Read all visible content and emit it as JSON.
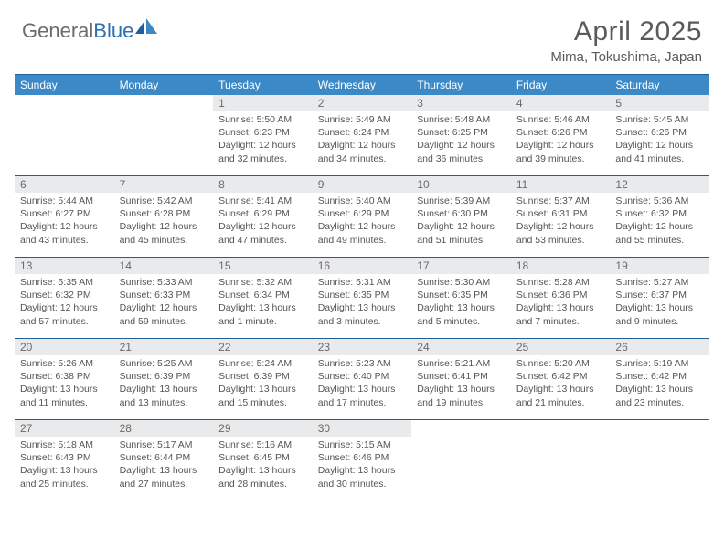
{
  "brand": {
    "part1": "General",
    "part2": "Blue"
  },
  "title": "April 2025",
  "location": "Mima, Tokushima, Japan",
  "colors": {
    "header_bg": "#3b89c7",
    "border": "#205e97",
    "daynum_bg": "#e9eaeb",
    "text": "#555555",
    "brand_gray": "#6b6b6b",
    "brand_blue": "#2b6fb5"
  },
  "days_of_week": [
    "Sunday",
    "Monday",
    "Tuesday",
    "Wednesday",
    "Thursday",
    "Friday",
    "Saturday"
  ],
  "weeks": [
    [
      {
        "n": "",
        "lines": []
      },
      {
        "n": "",
        "lines": []
      },
      {
        "n": "1",
        "lines": [
          "Sunrise: 5:50 AM",
          "Sunset: 6:23 PM",
          "Daylight: 12 hours",
          "and 32 minutes."
        ]
      },
      {
        "n": "2",
        "lines": [
          "Sunrise: 5:49 AM",
          "Sunset: 6:24 PM",
          "Daylight: 12 hours",
          "and 34 minutes."
        ]
      },
      {
        "n": "3",
        "lines": [
          "Sunrise: 5:48 AM",
          "Sunset: 6:25 PM",
          "Daylight: 12 hours",
          "and 36 minutes."
        ]
      },
      {
        "n": "4",
        "lines": [
          "Sunrise: 5:46 AM",
          "Sunset: 6:26 PM",
          "Daylight: 12 hours",
          "and 39 minutes."
        ]
      },
      {
        "n": "5",
        "lines": [
          "Sunrise: 5:45 AM",
          "Sunset: 6:26 PM",
          "Daylight: 12 hours",
          "and 41 minutes."
        ]
      }
    ],
    [
      {
        "n": "6",
        "lines": [
          "Sunrise: 5:44 AM",
          "Sunset: 6:27 PM",
          "Daylight: 12 hours",
          "and 43 minutes."
        ]
      },
      {
        "n": "7",
        "lines": [
          "Sunrise: 5:42 AM",
          "Sunset: 6:28 PM",
          "Daylight: 12 hours",
          "and 45 minutes."
        ]
      },
      {
        "n": "8",
        "lines": [
          "Sunrise: 5:41 AM",
          "Sunset: 6:29 PM",
          "Daylight: 12 hours",
          "and 47 minutes."
        ]
      },
      {
        "n": "9",
        "lines": [
          "Sunrise: 5:40 AM",
          "Sunset: 6:29 PM",
          "Daylight: 12 hours",
          "and 49 minutes."
        ]
      },
      {
        "n": "10",
        "lines": [
          "Sunrise: 5:39 AM",
          "Sunset: 6:30 PM",
          "Daylight: 12 hours",
          "and 51 minutes."
        ]
      },
      {
        "n": "11",
        "lines": [
          "Sunrise: 5:37 AM",
          "Sunset: 6:31 PM",
          "Daylight: 12 hours",
          "and 53 minutes."
        ]
      },
      {
        "n": "12",
        "lines": [
          "Sunrise: 5:36 AM",
          "Sunset: 6:32 PM",
          "Daylight: 12 hours",
          "and 55 minutes."
        ]
      }
    ],
    [
      {
        "n": "13",
        "lines": [
          "Sunrise: 5:35 AM",
          "Sunset: 6:32 PM",
          "Daylight: 12 hours",
          "and 57 minutes."
        ]
      },
      {
        "n": "14",
        "lines": [
          "Sunrise: 5:33 AM",
          "Sunset: 6:33 PM",
          "Daylight: 12 hours",
          "and 59 minutes."
        ]
      },
      {
        "n": "15",
        "lines": [
          "Sunrise: 5:32 AM",
          "Sunset: 6:34 PM",
          "Daylight: 13 hours",
          "and 1 minute."
        ]
      },
      {
        "n": "16",
        "lines": [
          "Sunrise: 5:31 AM",
          "Sunset: 6:35 PM",
          "Daylight: 13 hours",
          "and 3 minutes."
        ]
      },
      {
        "n": "17",
        "lines": [
          "Sunrise: 5:30 AM",
          "Sunset: 6:35 PM",
          "Daylight: 13 hours",
          "and 5 minutes."
        ]
      },
      {
        "n": "18",
        "lines": [
          "Sunrise: 5:28 AM",
          "Sunset: 6:36 PM",
          "Daylight: 13 hours",
          "and 7 minutes."
        ]
      },
      {
        "n": "19",
        "lines": [
          "Sunrise: 5:27 AM",
          "Sunset: 6:37 PM",
          "Daylight: 13 hours",
          "and 9 minutes."
        ]
      }
    ],
    [
      {
        "n": "20",
        "lines": [
          "Sunrise: 5:26 AM",
          "Sunset: 6:38 PM",
          "Daylight: 13 hours",
          "and 11 minutes."
        ]
      },
      {
        "n": "21",
        "lines": [
          "Sunrise: 5:25 AM",
          "Sunset: 6:39 PM",
          "Daylight: 13 hours",
          "and 13 minutes."
        ]
      },
      {
        "n": "22",
        "lines": [
          "Sunrise: 5:24 AM",
          "Sunset: 6:39 PM",
          "Daylight: 13 hours",
          "and 15 minutes."
        ]
      },
      {
        "n": "23",
        "lines": [
          "Sunrise: 5:23 AM",
          "Sunset: 6:40 PM",
          "Daylight: 13 hours",
          "and 17 minutes."
        ]
      },
      {
        "n": "24",
        "lines": [
          "Sunrise: 5:21 AM",
          "Sunset: 6:41 PM",
          "Daylight: 13 hours",
          "and 19 minutes."
        ]
      },
      {
        "n": "25",
        "lines": [
          "Sunrise: 5:20 AM",
          "Sunset: 6:42 PM",
          "Daylight: 13 hours",
          "and 21 minutes."
        ]
      },
      {
        "n": "26",
        "lines": [
          "Sunrise: 5:19 AM",
          "Sunset: 6:42 PM",
          "Daylight: 13 hours",
          "and 23 minutes."
        ]
      }
    ],
    [
      {
        "n": "27",
        "lines": [
          "Sunrise: 5:18 AM",
          "Sunset: 6:43 PM",
          "Daylight: 13 hours",
          "and 25 minutes."
        ]
      },
      {
        "n": "28",
        "lines": [
          "Sunrise: 5:17 AM",
          "Sunset: 6:44 PM",
          "Daylight: 13 hours",
          "and 27 minutes."
        ]
      },
      {
        "n": "29",
        "lines": [
          "Sunrise: 5:16 AM",
          "Sunset: 6:45 PM",
          "Daylight: 13 hours",
          "and 28 minutes."
        ]
      },
      {
        "n": "30",
        "lines": [
          "Sunrise: 5:15 AM",
          "Sunset: 6:46 PM",
          "Daylight: 13 hours",
          "and 30 minutes."
        ]
      },
      {
        "n": "",
        "lines": []
      },
      {
        "n": "",
        "lines": []
      },
      {
        "n": "",
        "lines": []
      }
    ]
  ]
}
